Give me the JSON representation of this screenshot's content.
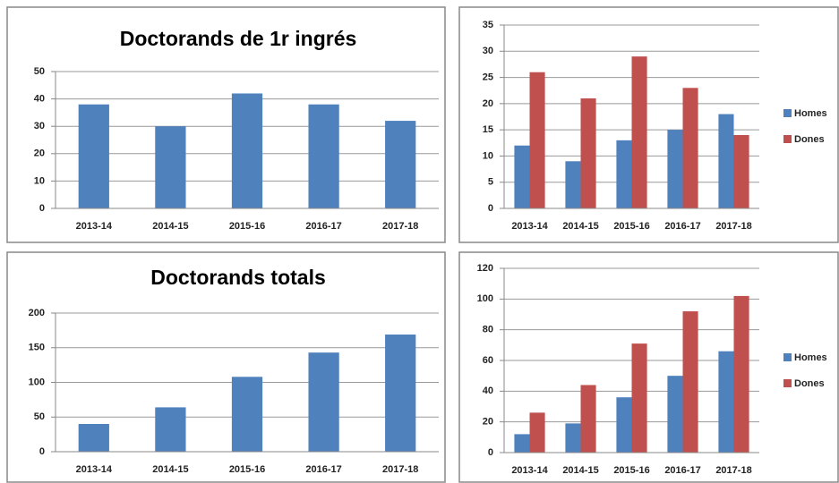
{
  "chart_data": [
    {
      "type": "bar",
      "title": "Doctorands de 1r ingrés",
      "categories": [
        "2013-14",
        "2014-15",
        "2015-16",
        "2016-17",
        "2017-18"
      ],
      "values": [
        38,
        30,
        42,
        38,
        32
      ],
      "color": "#4f81bd",
      "ylim": [
        0,
        50
      ],
      "yticks": [
        0,
        10,
        20,
        30,
        40,
        50
      ],
      "grid": true
    },
    {
      "type": "grouped_bar",
      "categories": [
        "2013-14",
        "2014-15",
        "2015-16",
        "2016-17",
        "2017-18"
      ],
      "series": [
        {
          "name": "Homes",
          "color": "#4f81bd",
          "values": [
            12,
            9,
            13,
            15,
            18
          ]
        },
        {
          "name": "Dones",
          "color": "#c0504d",
          "values": [
            26,
            21,
            29,
            23,
            14
          ]
        }
      ],
      "ylim": [
        0,
        35
      ],
      "yticks": [
        0,
        5,
        10,
        15,
        20,
        25,
        30,
        35
      ],
      "grid": true,
      "legend": "right"
    },
    {
      "type": "bar",
      "title": "Doctorands totals",
      "categories": [
        "2013-14",
        "2014-15",
        "2015-16",
        "2016-17",
        "2017-18"
      ],
      "values": [
        40,
        64,
        108,
        143,
        169
      ],
      "color": "#4f81bd",
      "ylim": [
        0,
        200
      ],
      "yticks": [
        0,
        50,
        100,
        150,
        200
      ],
      "grid": true
    },
    {
      "type": "grouped_bar",
      "categories": [
        "2013-14",
        "2014-15",
        "2015-16",
        "2016-17",
        "2017-18"
      ],
      "series": [
        {
          "name": "Homes",
          "color": "#4f81bd",
          "values": [
            12,
            19,
            36,
            50,
            66
          ]
        },
        {
          "name": "Dones",
          "color": "#c0504d",
          "values": [
            26,
            44,
            71,
            92,
            102
          ]
        }
      ],
      "ylim": [
        0,
        120
      ],
      "yticks": [
        0,
        20,
        40,
        60,
        80,
        100,
        120
      ],
      "grid": true,
      "legend": "right"
    }
  ]
}
